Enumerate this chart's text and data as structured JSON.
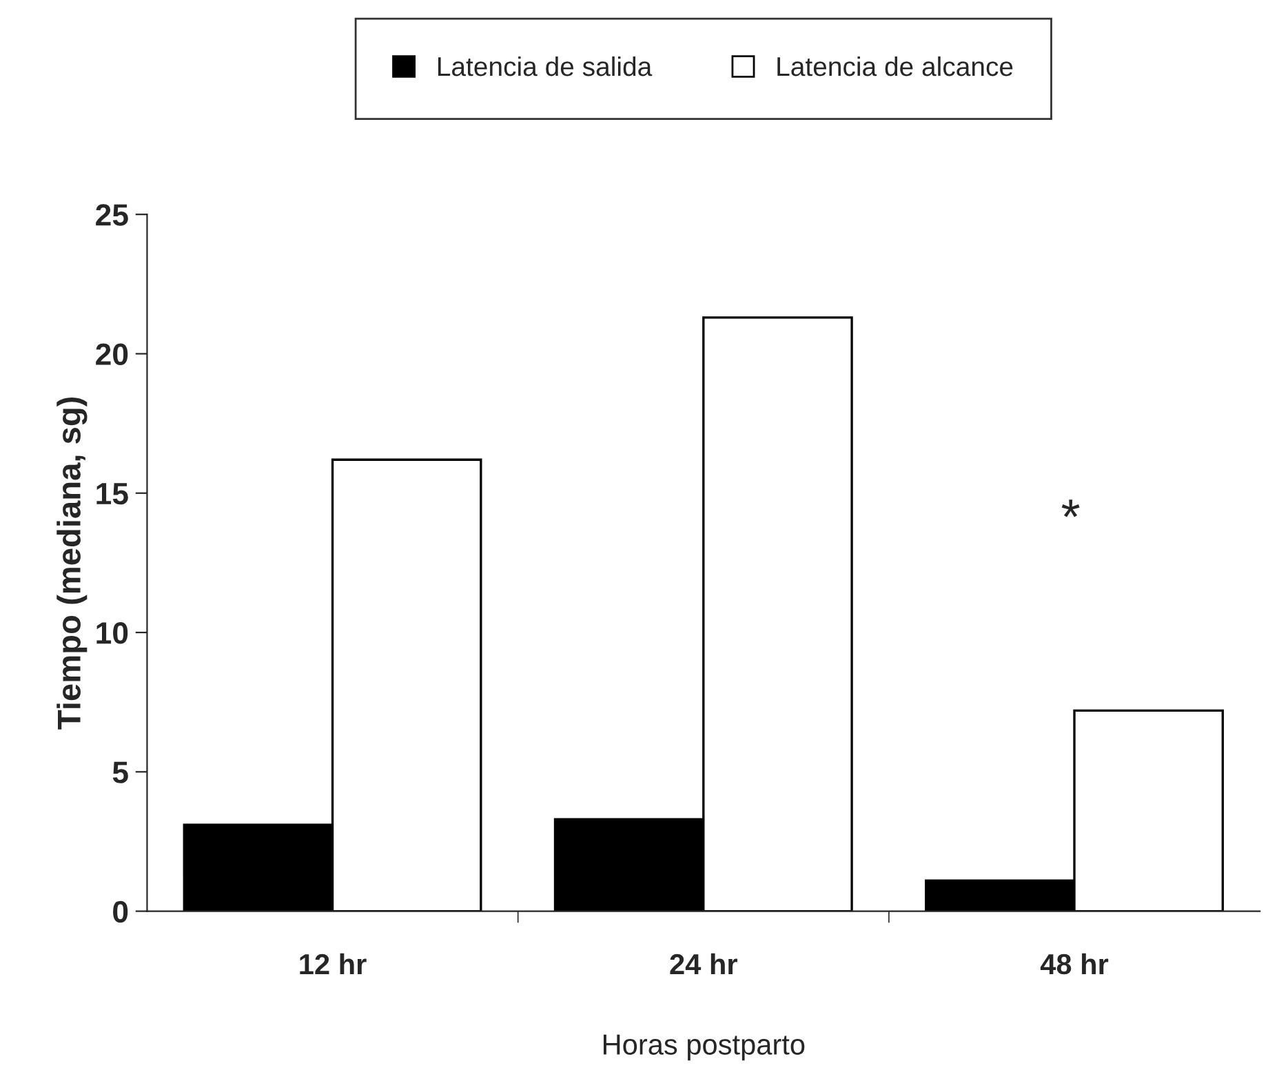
{
  "chart_data": {
    "type": "bar",
    "categories": [
      "12 hr",
      "24 hr",
      "48 hr"
    ],
    "series": [
      {
        "name": "Latencia de salida",
        "color": "#000000",
        "values": [
          3.1,
          3.3,
          1.1
        ]
      },
      {
        "name": "Latencia de alcance",
        "color": "#ffffff",
        "values": [
          16.2,
          21.3,
          7.2
        ]
      }
    ],
    "xlabel": "Horas postparto",
    "ylabel": "Tiempo (mediana, sg)",
    "ylim": [
      0,
      25
    ],
    "yticks": [
      0,
      5,
      10,
      15,
      20,
      25
    ],
    "annotations": [
      "*"
    ],
    "legend": "top",
    "grid": false
  }
}
